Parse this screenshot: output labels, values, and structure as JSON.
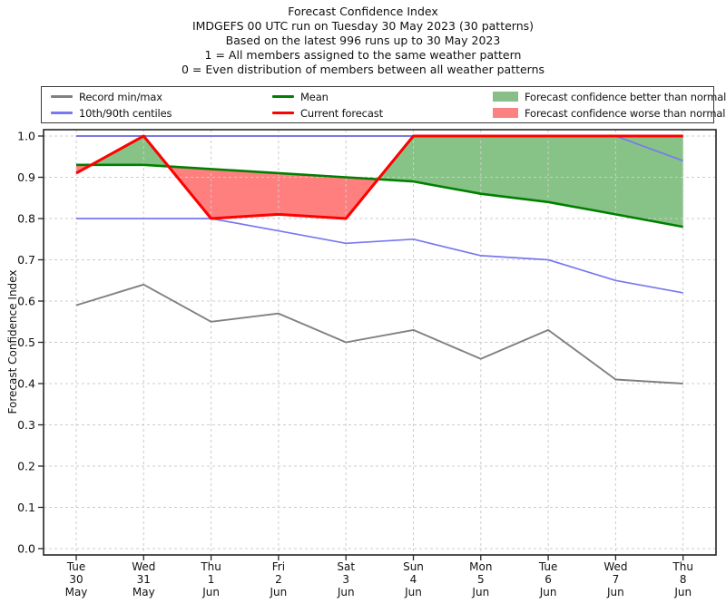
{
  "header": {
    "lines": [
      "Forecast Confidence Index",
      "IMDGEFS 00 UTC run on Tuesday 30 May 2023 (30 patterns)",
      "Based on the latest 996 runs up to 30 May 2023",
      "1 = All members assigned to the same weather pattern",
      "0 = Even distribution of members between all weather patterns"
    ]
  },
  "legend": {
    "items": [
      {
        "label": "Record min/max",
        "swatch": "line",
        "color": "#808080"
      },
      {
        "label": "Mean",
        "swatch": "line",
        "color": "#008000"
      },
      {
        "label": "Forecast confidence better than normal",
        "swatch": "patch",
        "color": "#88bf88"
      },
      {
        "label": "10th/90th centiles",
        "swatch": "line",
        "color": "#7878f0"
      },
      {
        "label": "Current forecast",
        "swatch": "line",
        "color": "#ff0000"
      },
      {
        "label": "Forecast confidence worse than normal",
        "swatch": "patch",
        "color": "#fa8282"
      }
    ]
  },
  "chart_data": {
    "type": "line",
    "title": "Forecast Confidence Index",
    "ylabel": "Forecast Confidence Index",
    "ylim": [
      0.0,
      1.0
    ],
    "yticks": [
      "0.0",
      "0.1",
      "0.2",
      "0.3",
      "0.4",
      "0.5",
      "0.6",
      "0.7",
      "0.8",
      "0.9",
      "1.0"
    ],
    "grid": true,
    "legend_position": "top",
    "categories": [
      {
        "dow": "Tue",
        "day": "30",
        "month": "May"
      },
      {
        "dow": "Wed",
        "day": "31",
        "month": "May"
      },
      {
        "dow": "Thu",
        "day": "1",
        "month": "Jun"
      },
      {
        "dow": "Fri",
        "day": "2",
        "month": "Jun"
      },
      {
        "dow": "Sat",
        "day": "3",
        "month": "Jun"
      },
      {
        "dow": "Sun",
        "day": "4",
        "month": "Jun"
      },
      {
        "dow": "Mon",
        "day": "5",
        "month": "Jun"
      },
      {
        "dow": "Tue",
        "day": "6",
        "month": "Jun"
      },
      {
        "dow": "Wed",
        "day": "7",
        "month": "Jun"
      },
      {
        "dow": "Thu",
        "day": "8",
        "month": "Jun"
      }
    ],
    "series": [
      {
        "key": "record_min",
        "name": "Record min",
        "color": "#808080",
        "values": [
          0.59,
          0.64,
          0.55,
          0.57,
          0.5,
          0.53,
          0.46,
          0.53,
          0.41,
          0.4
        ]
      },
      {
        "key": "record_max",
        "name": "Record max",
        "color": "#808080",
        "values": [
          1.0,
          1.0,
          1.0,
          1.0,
          1.0,
          1.0,
          1.0,
          1.0,
          1.0,
          1.0
        ]
      },
      {
        "key": "centile_10",
        "name": "10th centile",
        "color": "#7878f0",
        "values": [
          0.8,
          0.8,
          0.8,
          0.77,
          0.74,
          0.75,
          0.71,
          0.7,
          0.65,
          0.62
        ]
      },
      {
        "key": "centile_90",
        "name": "90th centile",
        "color": "#7878f0",
        "values": [
          1.0,
          1.0,
          1.0,
          1.0,
          1.0,
          1.0,
          1.0,
          1.0,
          1.0,
          0.94
        ]
      },
      {
        "key": "mean",
        "name": "Mean",
        "color": "#008000",
        "values": [
          0.93,
          0.93,
          0.92,
          0.91,
          0.9,
          0.89,
          0.86,
          0.84,
          0.81,
          0.78
        ]
      },
      {
        "key": "current",
        "name": "Current forecast",
        "color": "#ff0000",
        "values": [
          0.91,
          1.0,
          0.8,
          0.81,
          0.8,
          1.0,
          1.0,
          1.0,
          1.0,
          1.0
        ]
      }
    ],
    "fills": {
      "better_where": "current > mean",
      "worse_where": "current < mean"
    },
    "colors": {
      "better_fill": "rgba(0,128,0,0.47)",
      "worse_fill": "rgba(255,0,0,0.50)",
      "grid": "#cccccc",
      "frame": "#262626"
    }
  }
}
